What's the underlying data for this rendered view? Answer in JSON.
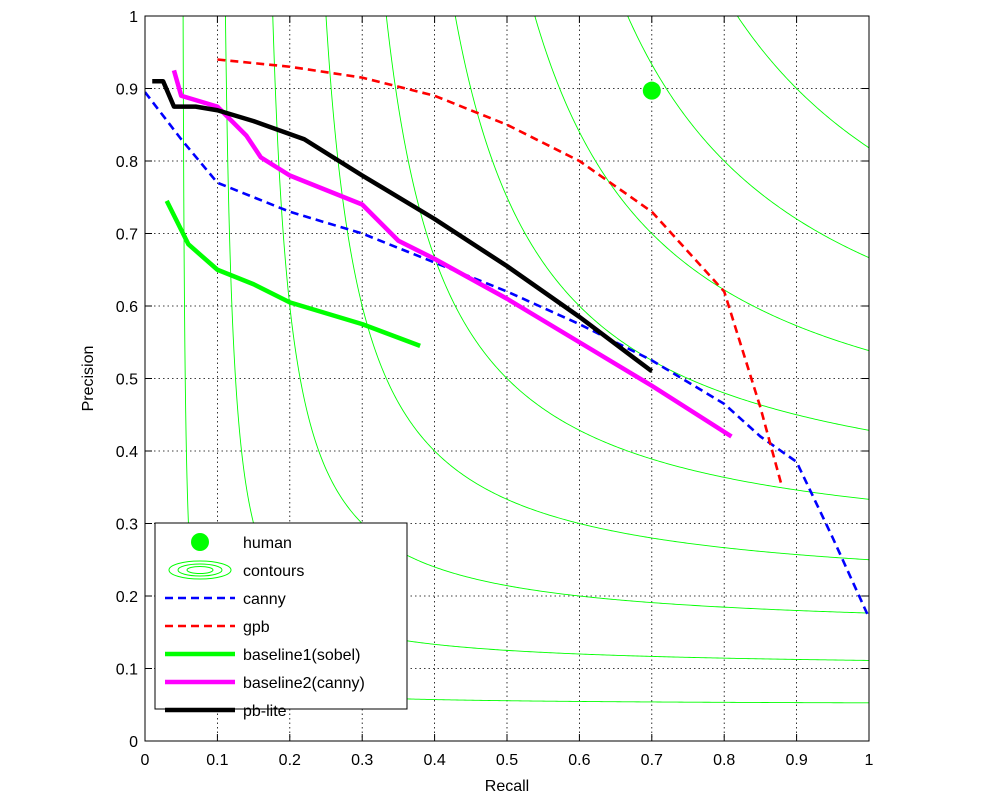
{
  "chart_data": {
    "type": "line",
    "xlabel": "Recall",
    "ylabel": "Precision",
    "xlim": [
      0,
      1
    ],
    "ylim": [
      0,
      1
    ],
    "grid": true,
    "legend_position": "bottom-left",
    "xticks": [
      0,
      0.1,
      0.2,
      0.3,
      0.4,
      0.5,
      0.6,
      0.7,
      0.8,
      0.9,
      1
    ],
    "yticks": [
      0,
      0.1,
      0.2,
      0.3,
      0.4,
      0.5,
      0.6,
      0.7,
      0.8,
      0.9,
      1
    ],
    "xtick_labels": [
      "0",
      "0.1",
      "0.2",
      "0.3",
      "0.4",
      "0.5",
      "0.6",
      "0.7",
      "0.8",
      "0.9",
      "1"
    ],
    "ytick_labels": [
      "0",
      "0.1",
      "0.2",
      "0.3",
      "0.4",
      "0.5",
      "0.6",
      "0.7",
      "0.8",
      "0.9",
      "1"
    ],
    "contours": {
      "label": "contours",
      "color": "#00ff00",
      "f_levels": [
        0.1,
        0.2,
        0.3,
        0.4,
        0.5,
        0.6,
        0.7,
        0.8,
        0.9
      ]
    },
    "human": {
      "label": "human",
      "color": "#00ff00",
      "recall": 0.7,
      "precision": 0.897
    },
    "series": [
      {
        "name": "canny",
        "color": "#0000ff",
        "style": "dashed",
        "width": "thin",
        "x": [
          0.0,
          0.05,
          0.1,
          0.2,
          0.3,
          0.4,
          0.5,
          0.6,
          0.7,
          0.8,
          0.85,
          0.9,
          0.95,
          1.0
        ],
        "y": [
          0.895,
          0.83,
          0.77,
          0.73,
          0.7,
          0.66,
          0.62,
          0.575,
          0.525,
          0.465,
          0.42,
          0.385,
          0.28,
          0.17
        ]
      },
      {
        "name": "gpb",
        "color": "#ff0000",
        "style": "dashed",
        "width": "thin",
        "x": [
          0.1,
          0.2,
          0.3,
          0.4,
          0.5,
          0.6,
          0.7,
          0.8,
          0.85,
          0.88
        ],
        "y": [
          0.94,
          0.93,
          0.915,
          0.89,
          0.85,
          0.8,
          0.73,
          0.62,
          0.46,
          0.35
        ]
      },
      {
        "name": "baseline1(sobel)",
        "color": "#00ff00",
        "style": "solid",
        "width": "thick",
        "x": [
          0.03,
          0.06,
          0.1,
          0.15,
          0.2,
          0.3,
          0.38
        ],
        "y": [
          0.745,
          0.685,
          0.65,
          0.63,
          0.605,
          0.575,
          0.545
        ]
      },
      {
        "name": "baseline2(canny)",
        "color": "#ff00ff",
        "style": "solid",
        "width": "thick",
        "x": [
          0.04,
          0.05,
          0.1,
          0.14,
          0.16,
          0.2,
          0.3,
          0.35,
          0.4,
          0.5,
          0.6,
          0.7,
          0.81
        ],
        "y": [
          0.925,
          0.89,
          0.875,
          0.835,
          0.805,
          0.78,
          0.74,
          0.69,
          0.665,
          0.61,
          0.55,
          0.49,
          0.42
        ]
      },
      {
        "name": "pb-lite",
        "color": "#000000",
        "style": "solid",
        "width": "thick",
        "x": [
          0.01,
          0.025,
          0.04,
          0.07,
          0.1,
          0.15,
          0.22,
          0.3,
          0.4,
          0.5,
          0.6,
          0.7
        ],
        "y": [
          0.91,
          0.91,
          0.875,
          0.875,
          0.87,
          0.855,
          0.83,
          0.78,
          0.72,
          0.655,
          0.585,
          0.51
        ]
      }
    ]
  }
}
